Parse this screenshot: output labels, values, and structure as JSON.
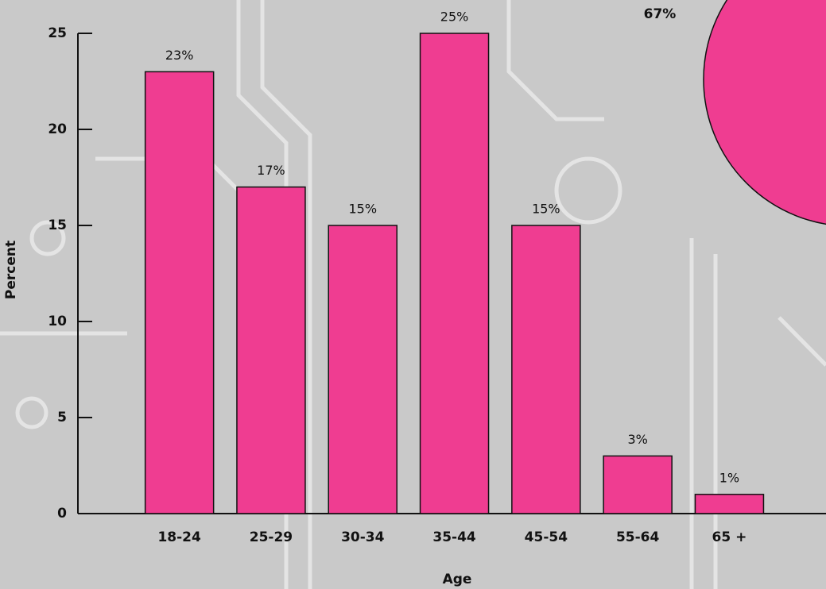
{
  "chart_data": {
    "type": "bar",
    "categories": [
      "18-24",
      "25-29",
      "30-34",
      "35-44",
      "45-54",
      "55-64",
      "65 +"
    ],
    "values": [
      23,
      17,
      15,
      25,
      15,
      3,
      1
    ],
    "value_labels": [
      "23%",
      "17%",
      "15%",
      "25%",
      "15%",
      "3%",
      "1%"
    ],
    "color": "#ef3d91",
    "ylim": [
      0,
      25
    ],
    "yticks": [
      0,
      5,
      10,
      15,
      20,
      25
    ],
    "y_label": "Percent",
    "x_label": "Age",
    "annotation": "67%"
  }
}
